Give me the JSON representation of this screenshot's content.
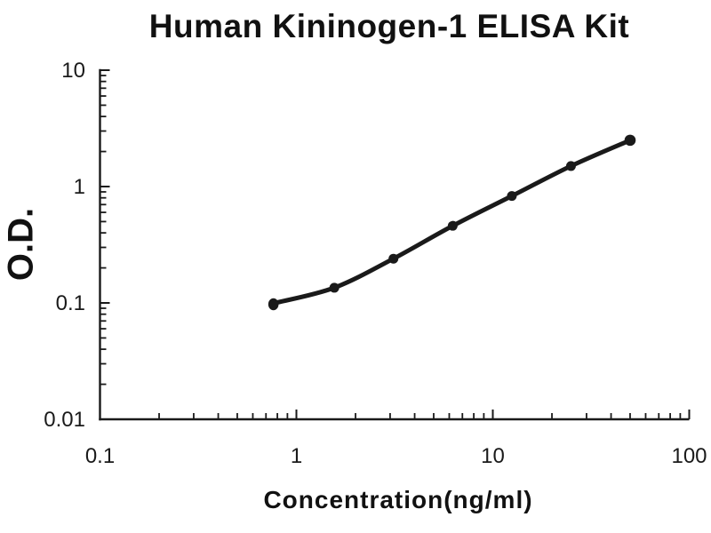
{
  "title": "Human Kininogen-1 ELISA Kit",
  "chart_data": {
    "type": "line",
    "title": "Human Kininogen-1 ELISA Kit",
    "xlabel": "Concentration(ng/ml)",
    "ylabel": "O.D.",
    "x_scale": "log",
    "y_scale": "log",
    "xlim": [
      0.1,
      100
    ],
    "ylim": [
      0.01,
      10
    ],
    "x_ticks": [
      "0.1",
      "1",
      "10",
      "100"
    ],
    "y_ticks": [
      "0.01",
      "0.1",
      "1",
      "10"
    ],
    "x": [
      0.78,
      1.56,
      3.12,
      6.25,
      12.5,
      25,
      50
    ],
    "series": [
      {
        "name": "O.D.",
        "values": [
          0.1,
          0.135,
          0.24,
          0.46,
          0.83,
          1.5,
          2.5
        ]
      }
    ],
    "grid": false,
    "legend": false,
    "marker": "filled-circle",
    "line_color": "#1a1a1a",
    "axis_color": "#1a1a1a",
    "background_color": "#ffffff"
  }
}
